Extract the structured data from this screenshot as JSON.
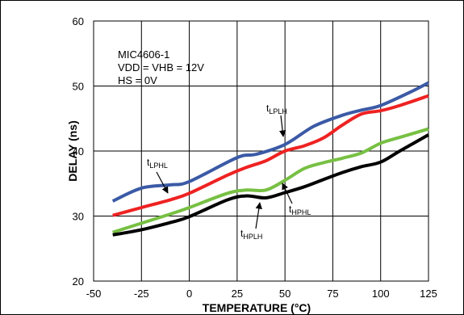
{
  "chart_data": {
    "type": "line",
    "title": "",
    "xlabel": "TEMPERATURE (°C)",
    "ylabel": "DELAY (ns)",
    "xlim": [
      -50,
      125
    ],
    "ylim": [
      20,
      60
    ],
    "x_ticks": [
      -50,
      -25,
      0,
      25,
      50,
      75,
      100,
      125
    ],
    "y_ticks": [
      20,
      30,
      40,
      50,
      60
    ],
    "grid": true,
    "annotations": [
      "MIC4606-1",
      "VDD = VHB = 12V",
      "HS = 0V"
    ],
    "series": [
      {
        "name": "tLPLH",
        "label_main": "t",
        "label_sub": "LPLH",
        "color": "#3b5aa6",
        "x": [
          -40,
          -25,
          -10,
          0,
          25,
          35,
          50,
          65,
          80,
          90,
          100,
          115,
          125
        ],
        "y": [
          32.3,
          34.3,
          34.8,
          35.3,
          39.0,
          39.5,
          41.0,
          43.8,
          45.5,
          46.3,
          47.0,
          49.0,
          50.5
        ]
      },
      {
        "name": "tLPHL",
        "label_main": "t",
        "label_sub": "LPHL",
        "color": "#ee2222",
        "x": [
          -40,
          -25,
          -10,
          0,
          20,
          30,
          40,
          50,
          60,
          70,
          80,
          90,
          100,
          110,
          125
        ],
        "y": [
          30.1,
          31.3,
          32.5,
          33.5,
          36.3,
          37.5,
          38.5,
          40.0,
          40.8,
          42.0,
          44.0,
          45.7,
          46.2,
          47.0,
          48.5
        ]
      },
      {
        "name": "tHPHL",
        "label_main": "t",
        "label_sub": "HPHL",
        "color": "#77c043",
        "x": [
          -40,
          -25,
          -10,
          0,
          20,
          30,
          40,
          50,
          60,
          70,
          80,
          90,
          100,
          110,
          125
        ],
        "y": [
          27.5,
          28.9,
          30.3,
          31.3,
          33.5,
          34.0,
          34.0,
          35.5,
          37.3,
          38.2,
          38.9,
          39.7,
          41.2,
          42.1,
          43.4
        ]
      },
      {
        "name": "tHPLH",
        "label_main": "t",
        "label_sub": "HPLH",
        "color": "#000000",
        "x": [
          -40,
          -25,
          -10,
          0,
          20,
          30,
          40,
          50,
          60,
          70,
          80,
          90,
          100,
          110,
          125
        ],
        "y": [
          27.1,
          27.9,
          29.0,
          29.9,
          32.5,
          33.1,
          32.8,
          33.6,
          34.5,
          35.6,
          36.7,
          37.6,
          38.3,
          40.0,
          42.5
        ]
      }
    ]
  }
}
